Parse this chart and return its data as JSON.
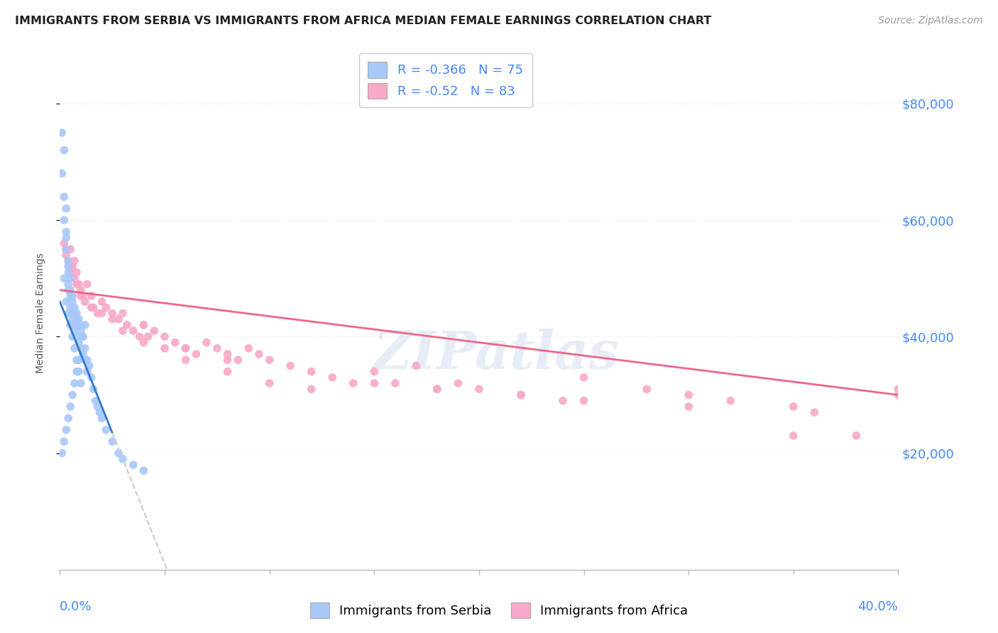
{
  "title": "IMMIGRANTS FROM SERBIA VS IMMIGRANTS FROM AFRICA MEDIAN FEMALE EARNINGS CORRELATION CHART",
  "source": "Source: ZipAtlas.com",
  "ylabel": "Median Female Earnings",
  "watermark": "ZIPatlas",
  "serbia_R": -0.366,
  "serbia_N": 75,
  "africa_R": -0.52,
  "africa_N": 83,
  "serbia_color": "#a8c8f8",
  "africa_color": "#f8a8c8",
  "serbia_line_color": "#3377cc",
  "africa_line_color": "#ee6688",
  "dashed_color": "#cccccc",
  "ytick_labels": [
    "$20,000",
    "$40,000",
    "$60,000",
    "$80,000"
  ],
  "ytick_values": [
    20000,
    40000,
    60000,
    80000
  ],
  "xmin": 0.0,
  "xmax": 0.4,
  "ymin": 0,
  "ymax": 88000,
  "title_color": "#222222",
  "source_color": "#999999",
  "axis_label_color": "#4488ff",
  "grid_color": "#e0e8f0",
  "serbia_x": [
    0.001,
    0.001,
    0.002,
    0.002,
    0.002,
    0.003,
    0.003,
    0.003,
    0.003,
    0.004,
    0.004,
    0.004,
    0.004,
    0.004,
    0.005,
    0.005,
    0.005,
    0.005,
    0.006,
    0.006,
    0.006,
    0.006,
    0.007,
    0.007,
    0.007,
    0.007,
    0.008,
    0.008,
    0.008,
    0.009,
    0.009,
    0.009,
    0.01,
    0.01,
    0.01,
    0.011,
    0.011,
    0.012,
    0.012,
    0.013,
    0.013,
    0.014,
    0.015,
    0.016,
    0.017,
    0.018,
    0.019,
    0.02,
    0.022,
    0.025,
    0.028,
    0.03,
    0.035,
    0.04,
    0.001,
    0.002,
    0.003,
    0.004,
    0.005,
    0.006,
    0.007,
    0.008,
    0.009,
    0.01,
    0.011,
    0.012,
    0.002,
    0.003,
    0.004,
    0.005,
    0.006,
    0.007,
    0.008,
    0.009,
    0.01
  ],
  "serbia_y": [
    75000,
    68000,
    72000,
    64000,
    60000,
    62000,
    57000,
    55000,
    58000,
    53000,
    51000,
    49000,
    52000,
    48000,
    50000,
    47000,
    45000,
    48000,
    46000,
    44000,
    43000,
    47000,
    44000,
    42000,
    45000,
    41000,
    43000,
    40000,
    44000,
    42000,
    39000,
    43000,
    41000,
    38000,
    42000,
    40000,
    37000,
    38000,
    36000,
    36000,
    34000,
    35000,
    33000,
    31000,
    29000,
    28000,
    27000,
    26000,
    24000,
    22000,
    20000,
    19000,
    18000,
    17000,
    20000,
    22000,
    24000,
    26000,
    28000,
    30000,
    32000,
    34000,
    36000,
    38000,
    40000,
    42000,
    50000,
    46000,
    44000,
    42000,
    40000,
    38000,
    36000,
    34000,
    32000
  ],
  "africa_x": [
    0.002,
    0.003,
    0.004,
    0.005,
    0.005,
    0.006,
    0.007,
    0.007,
    0.008,
    0.009,
    0.01,
    0.011,
    0.012,
    0.013,
    0.015,
    0.016,
    0.018,
    0.02,
    0.022,
    0.025,
    0.028,
    0.03,
    0.032,
    0.035,
    0.038,
    0.04,
    0.042,
    0.045,
    0.05,
    0.055,
    0.06,
    0.065,
    0.07,
    0.075,
    0.08,
    0.085,
    0.09,
    0.095,
    0.1,
    0.11,
    0.12,
    0.13,
    0.14,
    0.15,
    0.16,
    0.17,
    0.18,
    0.19,
    0.2,
    0.22,
    0.24,
    0.25,
    0.28,
    0.3,
    0.32,
    0.35,
    0.36,
    0.38,
    0.4,
    0.003,
    0.005,
    0.008,
    0.01,
    0.015,
    0.02,
    0.025,
    0.03,
    0.04,
    0.05,
    0.06,
    0.08,
    0.1,
    0.12,
    0.15,
    0.18,
    0.22,
    0.25,
    0.3,
    0.35,
    0.4,
    0.04,
    0.06,
    0.08
  ],
  "africa_y": [
    56000,
    54000,
    53000,
    51000,
    55000,
    52000,
    50000,
    53000,
    51000,
    49000,
    48000,
    47000,
    46000,
    49000,
    47000,
    45000,
    44000,
    46000,
    45000,
    44000,
    43000,
    44000,
    42000,
    41000,
    40000,
    42000,
    40000,
    41000,
    40000,
    39000,
    38000,
    37000,
    39000,
    38000,
    37000,
    36000,
    38000,
    37000,
    36000,
    35000,
    34000,
    33000,
    32000,
    34000,
    32000,
    35000,
    31000,
    32000,
    31000,
    30000,
    29000,
    33000,
    31000,
    30000,
    29000,
    28000,
    27000,
    23000,
    30000,
    55000,
    52000,
    49000,
    47000,
    45000,
    44000,
    43000,
    41000,
    39000,
    38000,
    36000,
    34000,
    32000,
    31000,
    32000,
    31000,
    30000,
    29000,
    28000,
    23000,
    31000,
    42000,
    38000,
    36000
  ]
}
